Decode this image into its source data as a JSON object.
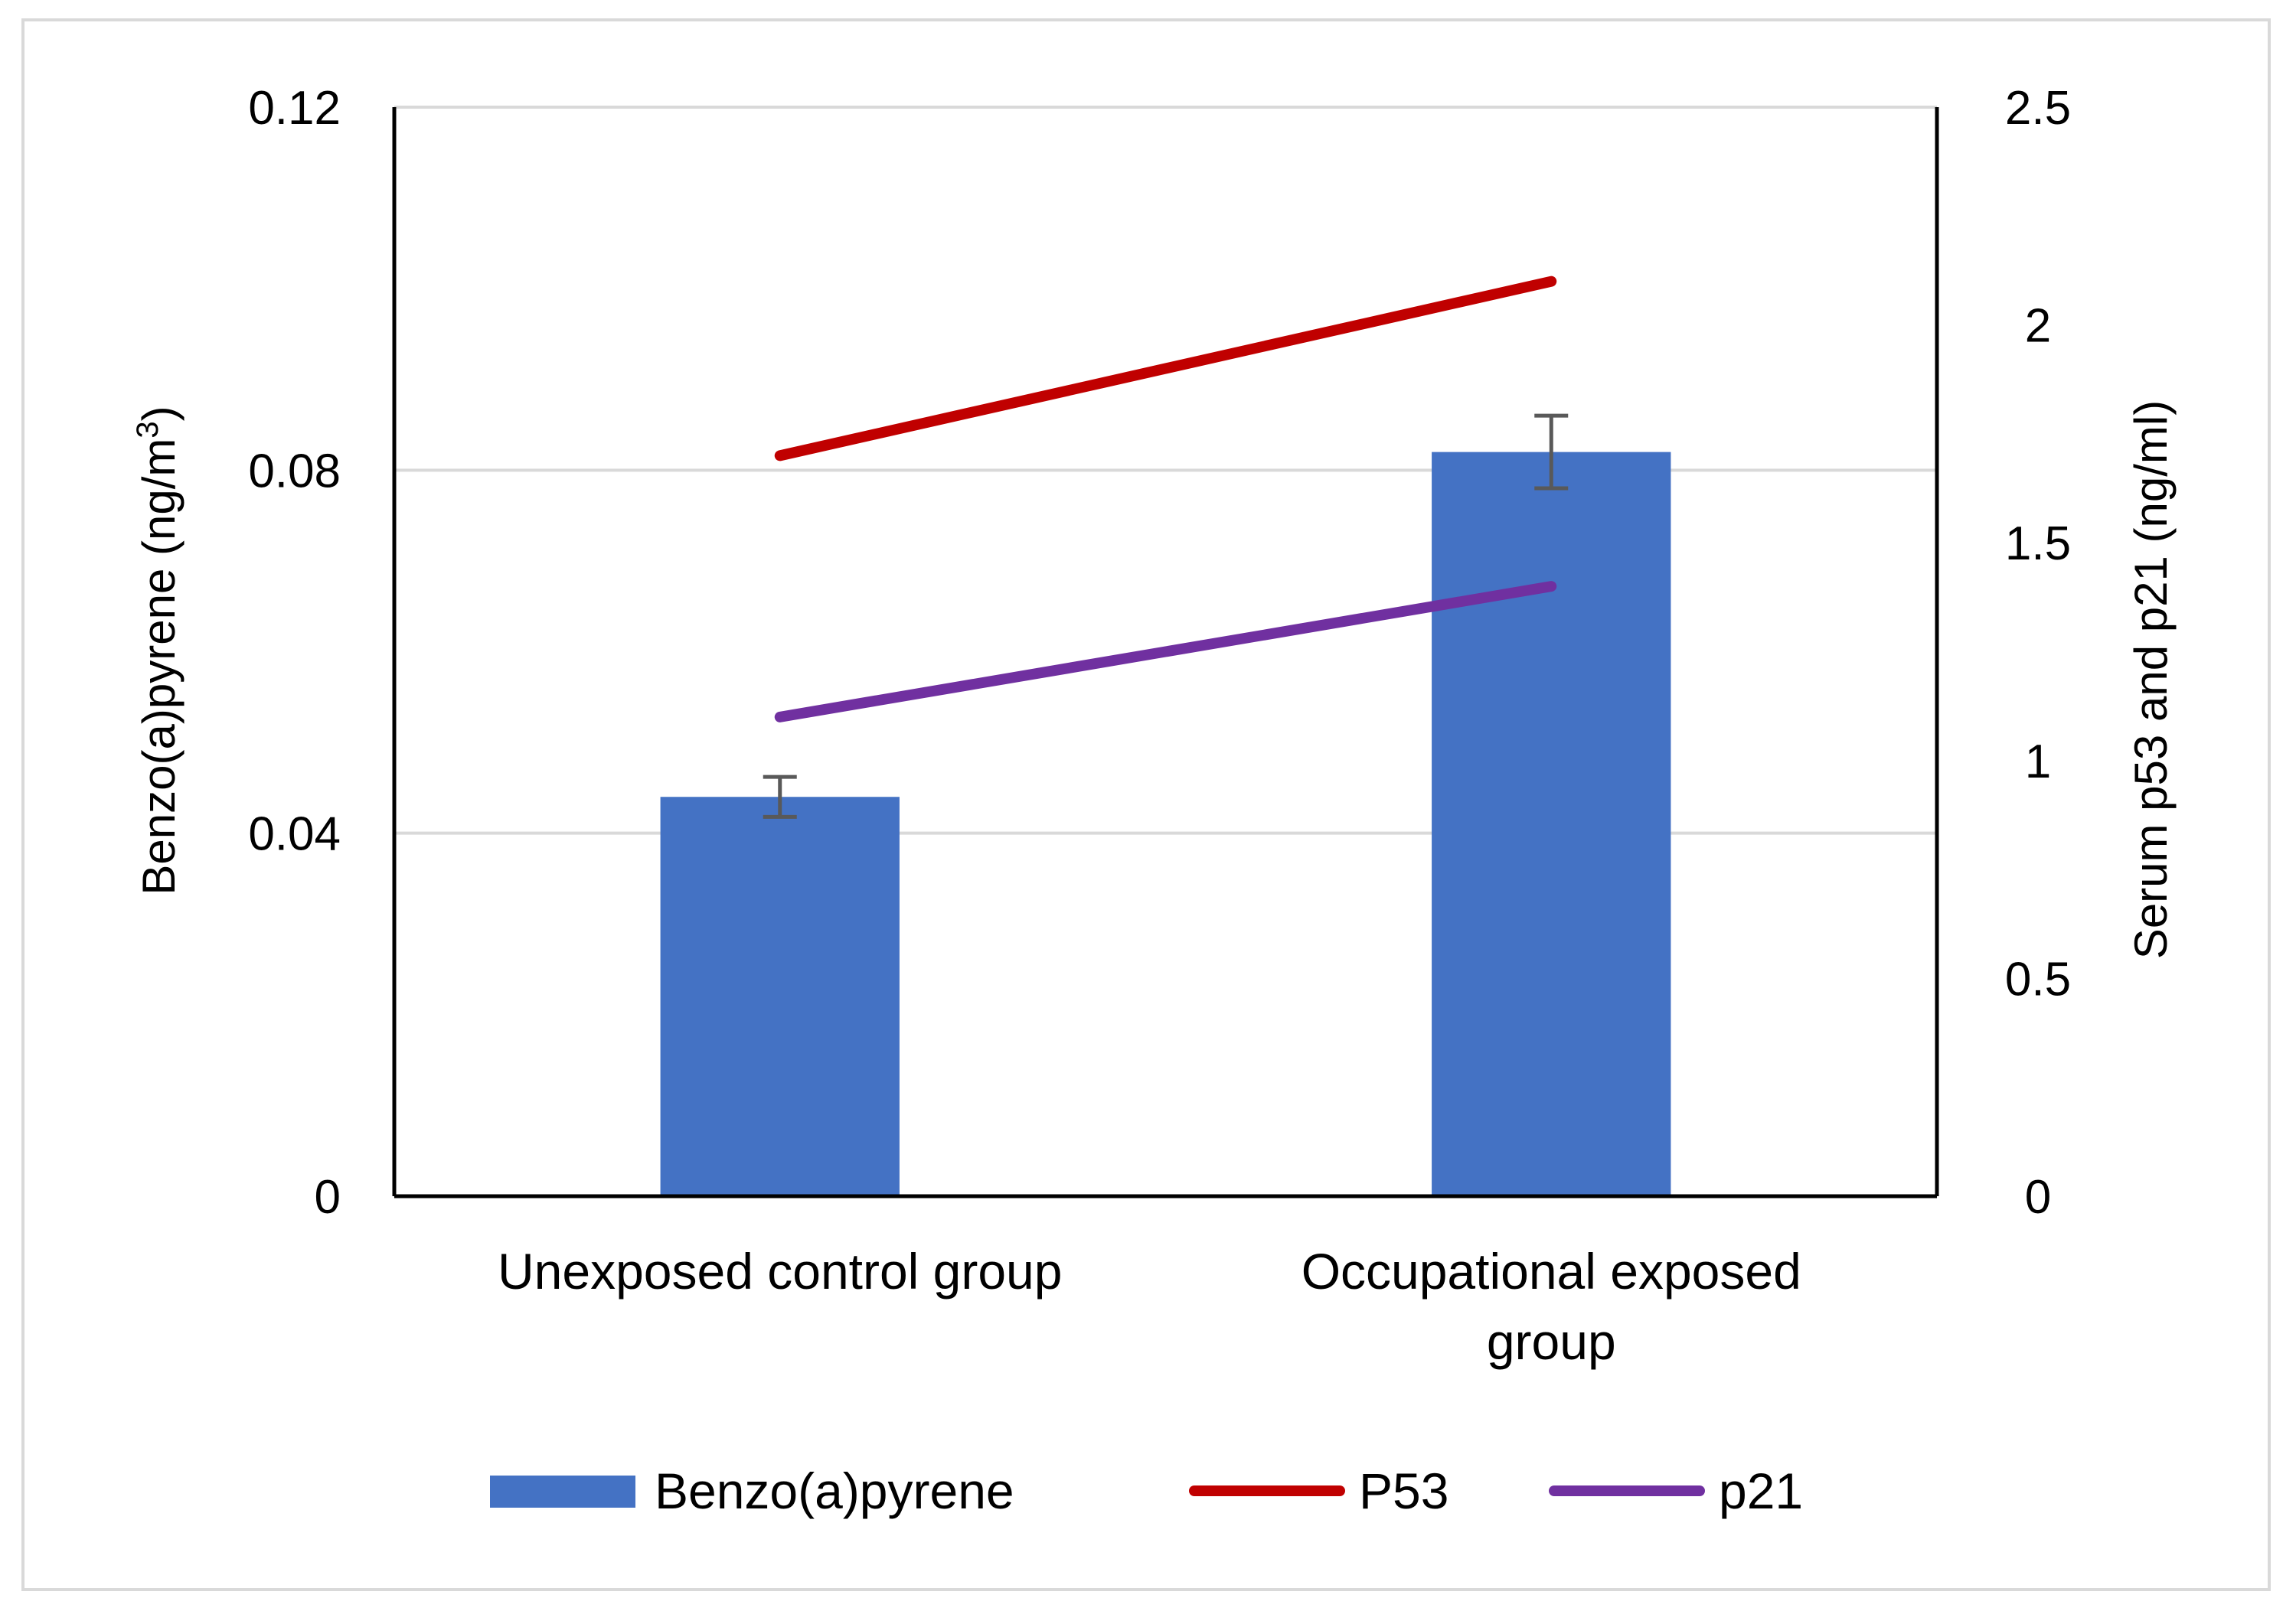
{
  "chart_data": {
    "type": "bar",
    "categories": [
      "Unexposed control group",
      "Occupational exposed group"
    ],
    "category_label_lines": [
      [
        "Unexposed control group"
      ],
      [
        "Occupational exposed",
        "group"
      ]
    ],
    "series": [
      {
        "name": "Benzo(a)pyrene",
        "type": "bar",
        "axis": "left",
        "values": [
          0.044,
          0.082
        ],
        "error": [
          0.0022,
          0.004
        ],
        "color": "#4472c4"
      },
      {
        "name": "P53",
        "type": "line",
        "axis": "right",
        "values": [
          1.7,
          2.1
        ],
        "color": "#c00000"
      },
      {
        "name": "p21",
        "type": "line",
        "axis": "right",
        "values": [
          1.1,
          1.4
        ],
        "color": "#7030a0"
      }
    ],
    "y_left": {
      "label_main": "Benzo(a)pyrene (ng/m",
      "label_sup": "3",
      "label_end": ")",
      "ylim": [
        0,
        0.12
      ],
      "ticks": [
        "0",
        "0.04",
        "0.08",
        "0.12"
      ],
      "tick_values": [
        0,
        0.04,
        0.08,
        0.12
      ]
    },
    "y_right": {
      "label": "Serum p53 and p21 (ng/ml)",
      "ylim": [
        0,
        2.5
      ],
      "ticks": [
        "0",
        "0.5",
        "1",
        "1.5",
        "2",
        "2.5"
      ],
      "tick_values": [
        0,
        0.5,
        1,
        1.5,
        2,
        2.5
      ]
    },
    "grid": true,
    "legend_position": "bottom"
  }
}
